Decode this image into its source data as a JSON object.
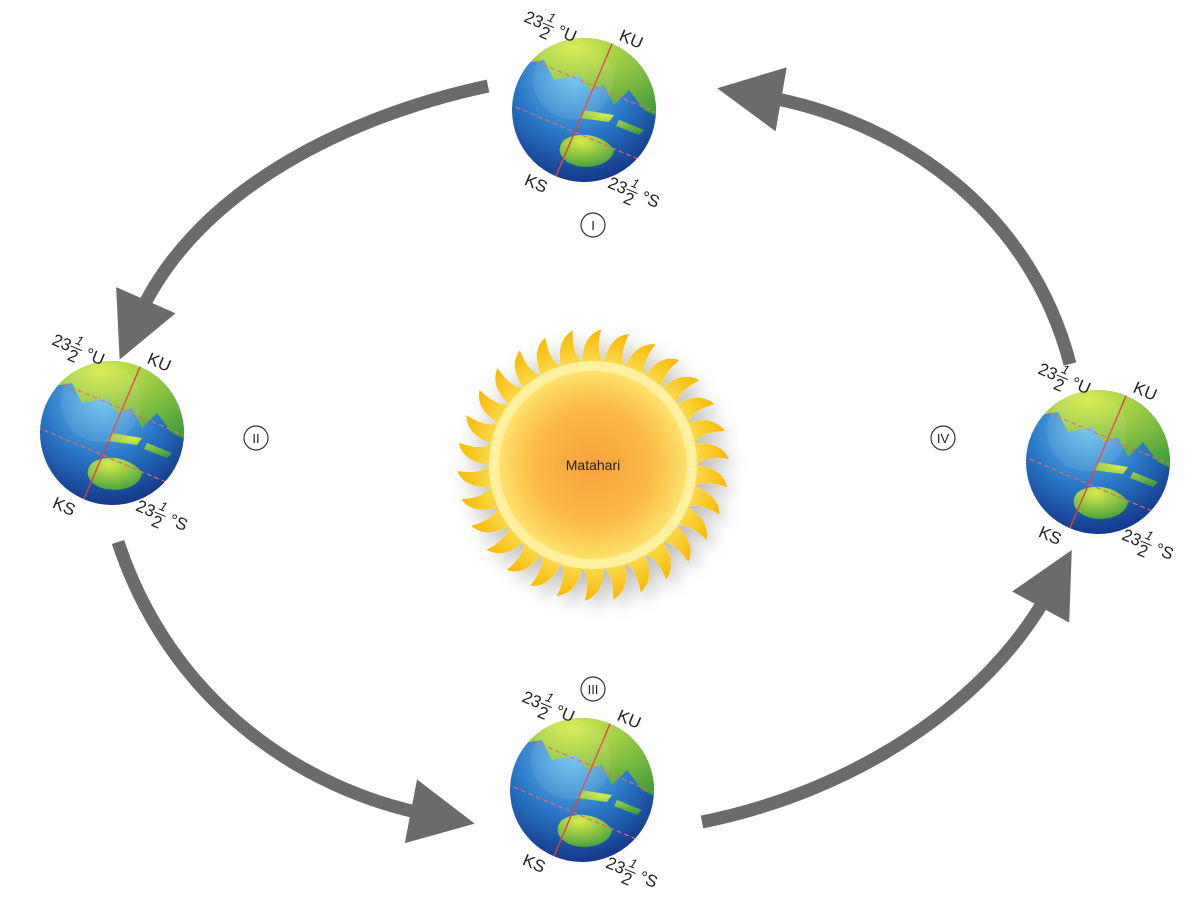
{
  "sun": {
    "label": "Matahari"
  },
  "positions": [
    {
      "label": "I",
      "earth": {
        "north_pole": "KU",
        "south_pole": "KS",
        "north_latitude": {
          "whole": "23",
          "numerator": "1",
          "denominator": "2",
          "unit": "°U"
        },
        "south_latitude": {
          "whole": "23",
          "numerator": "1",
          "denominator": "2",
          "unit": "°S"
        }
      }
    },
    {
      "label": "II",
      "earth": {
        "north_pole": "KU",
        "south_pole": "KS",
        "north_latitude": {
          "whole": "23",
          "numerator": "1",
          "denominator": "2",
          "unit": "°U"
        },
        "south_latitude": {
          "whole": "23",
          "numerator": "1",
          "denominator": "2",
          "unit": "°S"
        }
      }
    },
    {
      "label": "III",
      "earth": {
        "north_pole": "KU",
        "south_pole": "KS",
        "north_latitude": {
          "whole": "23",
          "numerator": "1",
          "denominator": "2",
          "unit": "°U"
        },
        "south_latitude": {
          "whole": "23",
          "numerator": "1",
          "denominator": "2",
          "unit": "°S"
        }
      }
    },
    {
      "label": "IV",
      "earth": {
        "north_pole": "KU",
        "south_pole": "KS",
        "north_latitude": {
          "whole": "23",
          "numerator": "1",
          "denominator": "2",
          "unit": "°U"
        },
        "south_latitude": {
          "whole": "23",
          "numerator": "1",
          "denominator": "2",
          "unit": "°S"
        }
      }
    }
  ]
}
